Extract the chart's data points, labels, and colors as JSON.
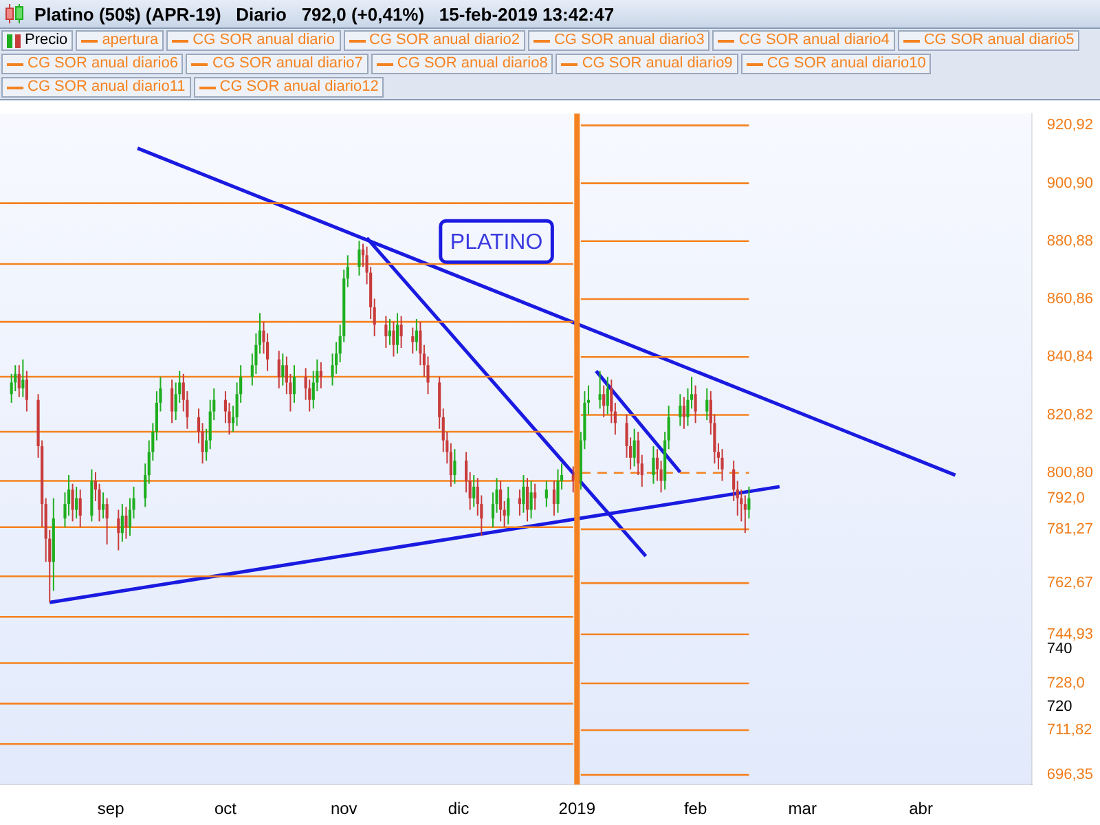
{
  "chart_data": {
    "type": "candlestick",
    "title": "Platino (50$) (APR-19)   Diario   792,0 (+0,41%)   15-feb-2019 13:42:47",
    "legend": "top",
    "xlim": [
      "2018-08-03",
      "2019-04-30"
    ],
    "xticks": [
      {
        "value": "2018-09-01",
        "label": "sep"
      },
      {
        "value": "2018-10-01",
        "label": "oct"
      },
      {
        "value": "2018-11-01",
        "label": "nov"
      },
      {
        "value": "2018-12-01",
        "label": "dic"
      },
      {
        "value": "2019-01-01",
        "label": "2019"
      },
      {
        "value": "2019-02-01",
        "label": "feb"
      },
      {
        "value": "2019-03-01",
        "label": "mar"
      },
      {
        "value": "2019-04-01",
        "label": "abr"
      }
    ],
    "ylim": [
      693,
      925
    ],
    "yticks": [
      {
        "value": 696.35,
        "label": "696,35"
      },
      {
        "value": 711.82,
        "label": "711,82"
      },
      720,
      {
        "value": 728.0,
        "label": "728,0"
      },
      740,
      {
        "value": 744.93,
        "label": "744,93"
      },
      {
        "value": 762.67,
        "label": "762,67"
      },
      {
        "value": 781.27,
        "label": "781,27"
      },
      {
        "value": 792.0,
        "label": "792,0"
      },
      {
        "value": 800.8,
        "label": "800,80"
      },
      {
        "value": 820.82,
        "label": "820,82"
      },
      {
        "value": 840.84,
        "label": "840,84"
      },
      {
        "value": 860.86,
        "label": "860,86"
      },
      {
        "value": 880.88,
        "label": "880,88"
      },
      {
        "value": 900.9,
        "label": "900,90"
      },
      {
        "value": 920.92,
        "label": "920,92"
      }
    ],
    "annotations": [
      "PLATINO"
    ],
    "ref_lines": [
      {
        "axis": "x",
        "value": "2019-01-01",
        "color": "#f58220"
      }
    ],
    "series": [
      {
        "name": "Precio",
        "type": "candlestick",
        "x": [
          "2018-08-06",
          "2018-08-07",
          "2018-08-08",
          "2018-08-09",
          "2018-08-10",
          "2018-08-13",
          "2018-08-14",
          "2018-08-15",
          "2018-08-16",
          "2018-08-17",
          "2018-08-20",
          "2018-08-21",
          "2018-08-22",
          "2018-08-23",
          "2018-08-24",
          "2018-08-27",
          "2018-08-28",
          "2018-08-29",
          "2018-08-30",
          "2018-08-31",
          "2018-09-03",
          "2018-09-04",
          "2018-09-05",
          "2018-09-06",
          "2018-09-07",
          "2018-09-10",
          "2018-09-11",
          "2018-09-12",
          "2018-09-13",
          "2018-09-14",
          "2018-09-17",
          "2018-09-18",
          "2018-09-19",
          "2018-09-20",
          "2018-09-21",
          "2018-09-24",
          "2018-09-25",
          "2018-09-26",
          "2018-09-27",
          "2018-09-28",
          "2018-10-01",
          "2018-10-02",
          "2018-10-03",
          "2018-10-04",
          "2018-10-05",
          "2018-10-08",
          "2018-10-09",
          "2018-10-10",
          "2018-10-11",
          "2018-10-12",
          "2018-10-15",
          "2018-10-16",
          "2018-10-17",
          "2018-10-18",
          "2018-10-19",
          "2018-10-22",
          "2018-10-23",
          "2018-10-24",
          "2018-10-25",
          "2018-10-26",
          "2018-10-29",
          "2018-10-30",
          "2018-10-31",
          "2018-11-01",
          "2018-11-02",
          "2018-11-05",
          "2018-11-06",
          "2018-11-07",
          "2018-11-08",
          "2018-11-09",
          "2018-11-12",
          "2018-11-13",
          "2018-11-14",
          "2018-11-15",
          "2018-11-16",
          "2018-11-19",
          "2018-11-20",
          "2018-11-21",
          "2018-11-22",
          "2018-11-23",
          "2018-11-26",
          "2018-11-27",
          "2018-11-28",
          "2018-11-29",
          "2018-11-30",
          "2018-12-03",
          "2018-12-04",
          "2018-12-05",
          "2018-12-06",
          "2018-12-07",
          "2018-12-10",
          "2018-12-11",
          "2018-12-12",
          "2018-12-13",
          "2018-12-14",
          "2018-12-17",
          "2018-12-18",
          "2018-12-19",
          "2018-12-20",
          "2018-12-21",
          "2018-12-24",
          "2018-12-26",
          "2018-12-27",
          "2018-12-28",
          "2018-12-31",
          "2019-01-02",
          "2019-01-03",
          "2019-01-04",
          "2019-01-07",
          "2019-01-08",
          "2019-01-09",
          "2019-01-10",
          "2019-01-11",
          "2019-01-14",
          "2019-01-15",
          "2019-01-16",
          "2019-01-17",
          "2019-01-18",
          "2019-01-21",
          "2019-01-22",
          "2019-01-23",
          "2019-01-24",
          "2019-01-25",
          "2019-01-28",
          "2019-01-29",
          "2019-01-30",
          "2019-01-31",
          "2019-02-01",
          "2019-02-04",
          "2019-02-05",
          "2019-02-06",
          "2019-02-07",
          "2019-02-08",
          "2019-02-11",
          "2019-02-12",
          "2019-02-13",
          "2019-02-14",
          "2019-02-15"
        ],
        "ohlc": [
          [
            828,
            835,
            825,
            832
          ],
          [
            832,
            838,
            829,
            835
          ],
          [
            835,
            838,
            827,
            830
          ],
          [
            830,
            840,
            827,
            833
          ],
          [
            833,
            836,
            822,
            826
          ],
          [
            826,
            828,
            806,
            810
          ],
          [
            810,
            812,
            782,
            790
          ],
          [
            790,
            792,
            770,
            778
          ],
          [
            778,
            781,
            756,
            770
          ],
          [
            770,
            792,
            760,
            785
          ],
          [
            785,
            794,
            782,
            790
          ],
          [
            790,
            800,
            786,
            795
          ],
          [
            795,
            797,
            784,
            788
          ],
          [
            788,
            796,
            785,
            792
          ],
          [
            792,
            795,
            782,
            786
          ],
          [
            786,
            802,
            784,
            798
          ],
          [
            798,
            801,
            791,
            795
          ],
          [
            795,
            797,
            784,
            788
          ],
          [
            788,
            794,
            785,
            790
          ],
          [
            790,
            792,
            776,
            785
          ],
          [
            785,
            788,
            774,
            780
          ],
          [
            780,
            790,
            777,
            786
          ],
          [
            786,
            789,
            778,
            782
          ],
          [
            782,
            792,
            779,
            788
          ],
          [
            788,
            796,
            785,
            792
          ],
          [
            792,
            804,
            789,
            800
          ],
          [
            800,
            812,
            797,
            808
          ],
          [
            808,
            818,
            805,
            815
          ],
          [
            815,
            829,
            812,
            825
          ],
          [
            825,
            834,
            822,
            830
          ],
          [
            830,
            833,
            818,
            822
          ],
          [
            822,
            832,
            819,
            828
          ],
          [
            828,
            836,
            825,
            832
          ],
          [
            832,
            835,
            822,
            826
          ],
          [
            826,
            829,
            816,
            820
          ],
          [
            820,
            823,
            811,
            815
          ],
          [
            815,
            818,
            804,
            808
          ],
          [
            808,
            816,
            805,
            812
          ],
          [
            812,
            826,
            809,
            822
          ],
          [
            822,
            830,
            819,
            826
          ],
          [
            826,
            829,
            818,
            822
          ],
          [
            822,
            825,
            814,
            818
          ],
          [
            818,
            824,
            815,
            820
          ],
          [
            820,
            832,
            817,
            828
          ],
          [
            828,
            838,
            825,
            834
          ],
          [
            834,
            842,
            831,
            838
          ],
          [
            838,
            849,
            835,
            845
          ],
          [
            845,
            856,
            842,
            850
          ],
          [
            850,
            853,
            842,
            846
          ],
          [
            846,
            849,
            836,
            840
          ],
          [
            840,
            843,
            830,
            834
          ],
          [
            834,
            842,
            831,
            838
          ],
          [
            838,
            841,
            828,
            832
          ],
          [
            832,
            835,
            822,
            828
          ],
          [
            828,
            838,
            825,
            834
          ],
          [
            834,
            837,
            826,
            830
          ],
          [
            830,
            833,
            822,
            826
          ],
          [
            826,
            836,
            823,
            832
          ],
          [
            832,
            840,
            829,
            836
          ],
          [
            836,
            839,
            830,
            834
          ],
          [
            834,
            842,
            831,
            838
          ],
          [
            838,
            846,
            835,
            842
          ],
          [
            842,
            852,
            839,
            848
          ],
          [
            848,
            871,
            846,
            868
          ],
          [
            868,
            876,
            865,
            872
          ],
          [
            872,
            881,
            869,
            878
          ],
          [
            878,
            880,
            872,
            876
          ],
          [
            876,
            879,
            866,
            870
          ],
          [
            870,
            872,
            854,
            858
          ],
          [
            858,
            861,
            848,
            852
          ],
          [
            852,
            855,
            844,
            848
          ],
          [
            848,
            854,
            845,
            850
          ],
          [
            850,
            853,
            841,
            845
          ],
          [
            845,
            856,
            842,
            852
          ],
          [
            852,
            855,
            844,
            848
          ],
          [
            848,
            851,
            842,
            846
          ],
          [
            846,
            854,
            843,
            850
          ],
          [
            850,
            853,
            838,
            842
          ],
          [
            842,
            845,
            834,
            838
          ],
          [
            838,
            841,
            828,
            832
          ],
          [
            832,
            834,
            816,
            820
          ],
          [
            820,
            823,
            808,
            812
          ],
          [
            812,
            815,
            804,
            808
          ],
          [
            808,
            811,
            796,
            800
          ],
          [
            800,
            809,
            797,
            805
          ],
          [
            805,
            808,
            794,
            798
          ],
          [
            798,
            801,
            788,
            792
          ],
          [
            792,
            800,
            789,
            796
          ],
          [
            796,
            799,
            786,
            790
          ],
          [
            790,
            793,
            779,
            785
          ],
          [
            785,
            794,
            782,
            790
          ],
          [
            790,
            799,
            787,
            795
          ],
          [
            795,
            798,
            784,
            788
          ],
          [
            788,
            791,
            782,
            786
          ],
          [
            786,
            796,
            783,
            792
          ],
          [
            792,
            795,
            786,
            790
          ],
          [
            790,
            800,
            787,
            796
          ],
          [
            796,
            799,
            784,
            788
          ],
          [
            788,
            798,
            785,
            794
          ],
          [
            794,
            797,
            788,
            792
          ],
          [
            792,
            798,
            789,
            795
          ],
          [
            795,
            798,
            786,
            790
          ],
          [
            790,
            802,
            787,
            798
          ],
          [
            798,
            804,
            795,
            800
          ],
          [
            800,
            803,
            794,
            798
          ],
          [
            798,
            815,
            795,
            812
          ],
          [
            812,
            829,
            809,
            825
          ],
          [
            825,
            831,
            821,
            826
          ],
          [
            826,
            836,
            823,
            828
          ],
          [
            828,
            831,
            820,
            824
          ],
          [
            824,
            834,
            821,
            830
          ],
          [
            830,
            833,
            818,
            822
          ],
          [
            822,
            825,
            814,
            818
          ],
          [
            818,
            821,
            806,
            810
          ],
          [
            810,
            813,
            802,
            806
          ],
          [
            806,
            816,
            803,
            812
          ],
          [
            812,
            815,
            800,
            804
          ],
          [
            804,
            807,
            796,
            800
          ],
          [
            800,
            810,
            797,
            806
          ],
          [
            806,
            809,
            798,
            802
          ],
          [
            802,
            805,
            794,
            798
          ],
          [
            798,
            815,
            795,
            812
          ],
          [
            812,
            824,
            809,
            820
          ],
          [
            820,
            828,
            817,
            824
          ],
          [
            824,
            827,
            816,
            820
          ],
          [
            820,
            830,
            817,
            826
          ],
          [
            826,
            834,
            823,
            828
          ],
          [
            828,
            831,
            818,
            822
          ],
          [
            822,
            830,
            819,
            826
          ],
          [
            826,
            829,
            814,
            818
          ],
          [
            818,
            821,
            804,
            808
          ],
          [
            808,
            811,
            802,
            806
          ],
          [
            806,
            809,
            798,
            802
          ],
          [
            802,
            805,
            791,
            795
          ],
          [
            795,
            798,
            786,
            792
          ],
          [
            792,
            795,
            784,
            790
          ],
          [
            790,
            793,
            780,
            788
          ],
          [
            788,
            796,
            785,
            792
          ]
        ]
      },
      {
        "name": "apertura",
        "type": "line",
        "color": "#f58220",
        "line_style": "dashed",
        "x": [
          "2019-01-02",
          "2019-02-15"
        ],
        "values": [
          800.8,
          800.8
        ]
      },
      {
        "name": "CG SOR anual diario",
        "type": "line",
        "color": "#f58220",
        "x": [
          "2019-01-02",
          "2019-02-15"
        ],
        "values": [
          920.92,
          920.92
        ]
      },
      {
        "name": "CG SOR anual diario2",
        "type": "line",
        "color": "#f58220",
        "x": [
          "2019-01-02",
          "2019-02-15"
        ],
        "values": [
          900.9,
          900.9
        ]
      },
      {
        "name": "CG SOR anual diario3",
        "type": "line",
        "color": "#f58220",
        "x": [
          "2019-01-02",
          "2019-02-15"
        ],
        "values": [
          880.88,
          880.88
        ]
      },
      {
        "name": "CG SOR anual diario4",
        "type": "line",
        "color": "#f58220",
        "x": [
          "2019-01-02",
          "2019-02-15"
        ],
        "values": [
          860.86,
          860.86
        ]
      },
      {
        "name": "CG SOR anual diario5",
        "type": "line",
        "color": "#f58220",
        "x": [
          "2019-01-02",
          "2019-02-15"
        ],
        "values": [
          840.84,
          840.84
        ]
      },
      {
        "name": "CG SOR anual diario6",
        "type": "line",
        "color": "#f58220",
        "x": [
          "2019-01-02",
          "2019-02-15"
        ],
        "values": [
          820.82,
          820.82
        ]
      },
      {
        "name": "CG SOR anual diario7",
        "type": "line",
        "color": "#f58220",
        "x": [
          "2019-01-02",
          "2019-02-15"
        ],
        "values": [
          781.27,
          781.27
        ]
      },
      {
        "name": "CG SOR anual diario8",
        "type": "line",
        "color": "#f58220",
        "x": [
          "2019-01-02",
          "2019-02-15"
        ],
        "values": [
          762.67,
          762.67
        ]
      },
      {
        "name": "CG SOR anual diario9",
        "type": "line",
        "color": "#f58220",
        "x": [
          "2019-01-02",
          "2019-02-15"
        ],
        "values": [
          744.93,
          744.93
        ]
      },
      {
        "name": "CG SOR anual diario10",
        "type": "line",
        "color": "#f58220",
        "x": [
          "2019-01-02",
          "2019-02-15"
        ],
        "values": [
          728.0,
          728.0
        ]
      },
      {
        "name": "CG SOR anual diario11",
        "type": "line",
        "color": "#f58220",
        "x": [
          "2019-01-02",
          "2019-02-15"
        ],
        "values": [
          711.82,
          711.82
        ]
      },
      {
        "name": "CG SOR anual diario12",
        "type": "line",
        "color": "#f58220",
        "x": [
          "2019-01-02",
          "2019-02-15"
        ],
        "values": [
          696.35,
          696.35
        ]
      },
      {
        "type": "line",
        "color": "#f58220",
        "x": [
          "2018-08-03",
          "2018-12-31"
        ],
        "values": [
          894,
          894
        ]
      },
      {
        "type": "line",
        "color": "#f58220",
        "x": [
          "2018-08-03",
          "2018-12-31"
        ],
        "values": [
          873,
          873
        ]
      },
      {
        "type": "line",
        "color": "#f58220",
        "x": [
          "2018-08-03",
          "2018-12-31"
        ],
        "values": [
          853,
          853
        ]
      },
      {
        "type": "line",
        "color": "#f58220",
        "x": [
          "2018-08-03",
          "2018-12-31"
        ],
        "values": [
          834,
          834
        ]
      },
      {
        "type": "line",
        "color": "#f58220",
        "x": [
          "2018-08-03",
          "2018-12-31"
        ],
        "values": [
          815,
          815
        ]
      },
      {
        "type": "line",
        "color": "#f58220",
        "x": [
          "2018-08-03",
          "2018-12-31"
        ],
        "values": [
          798,
          798
        ]
      },
      {
        "type": "line",
        "color": "#f58220",
        "x": [
          "2018-08-03",
          "2018-12-31"
        ],
        "values": [
          782,
          782
        ]
      },
      {
        "type": "line",
        "color": "#f58220",
        "x": [
          "2018-08-03",
          "2018-12-31"
        ],
        "values": [
          765,
          765
        ]
      },
      {
        "type": "line",
        "color": "#f58220",
        "x": [
          "2018-08-03",
          "2018-12-31"
        ],
        "values": [
          751,
          751
        ]
      },
      {
        "type": "line",
        "color": "#f58220",
        "x": [
          "2018-08-03",
          "2018-12-31"
        ],
        "values": [
          735,
          735
        ]
      },
      {
        "type": "line",
        "color": "#f58220",
        "x": [
          "2018-08-03",
          "2018-12-31"
        ],
        "values": [
          721,
          721
        ]
      },
      {
        "type": "line",
        "color": "#f58220",
        "x": [
          "2018-08-03",
          "2018-12-31"
        ],
        "values": [
          707,
          707
        ]
      },
      {
        "type": "line",
        "color": "#1a1ae0",
        "x": [
          "2018-09-08",
          "2019-04-10"
        ],
        "values": [
          913,
          800
        ]
      },
      {
        "type": "line",
        "color": "#1a1ae0",
        "x": [
          "2018-11-07",
          "2019-01-19"
        ],
        "values": [
          882,
          772
        ]
      },
      {
        "type": "line",
        "color": "#1a1ae0",
        "x": [
          "2018-08-16",
          "2019-02-23"
        ],
        "values": [
          756,
          796
        ]
      },
      {
        "type": "line",
        "color": "#1a1ae0",
        "x": [
          "2019-01-06",
          "2019-01-28"
        ],
        "values": [
          836,
          801
        ]
      }
    ]
  }
}
